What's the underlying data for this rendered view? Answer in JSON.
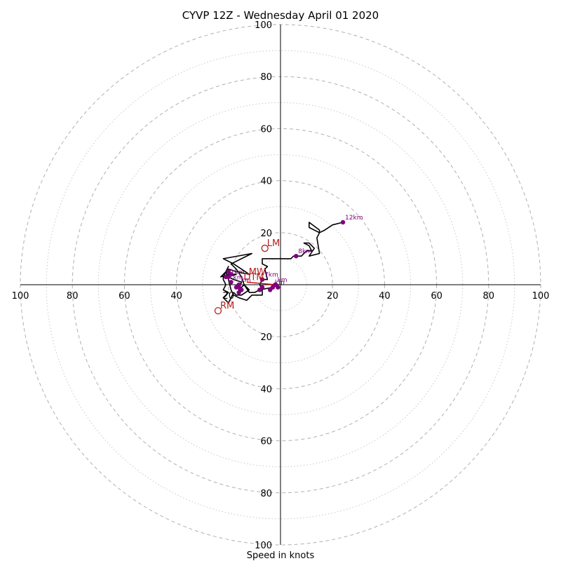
{
  "chart_data": {
    "type": "hodograph",
    "title": "CYVP 12Z - Wednesday April 01 2020",
    "xlabel": "Speed in knots",
    "xlim": [
      -100,
      100
    ],
    "ylim": [
      -100,
      100
    ],
    "rings": {
      "major": [
        20,
        40,
        60,
        80,
        100
      ],
      "minor": [
        10,
        30,
        50,
        70,
        90
      ]
    },
    "x_tick_labels": [
      "100",
      "80",
      "60",
      "40",
      "20",
      "20",
      "40",
      "60",
      "80",
      "100"
    ],
    "y_tick_labels": [
      "100",
      "80",
      "60",
      "40",
      "20",
      "20",
      "40",
      "60",
      "80",
      "100"
    ],
    "hodograph_trace": [
      [
        -3,
        -1
      ],
      [
        -8,
        -2
      ],
      [
        -10,
        -3
      ],
      [
        -12,
        -3
      ],
      [
        -14,
        0
      ],
      [
        -16,
        -2
      ],
      [
        -15,
        1
      ],
      [
        -18,
        2
      ],
      [
        -20,
        3
      ],
      [
        -17,
        4
      ],
      [
        -20,
        4
      ],
      [
        -23,
        3
      ],
      [
        -20,
        6
      ],
      [
        -17,
        5
      ],
      [
        -12,
        4
      ],
      [
        -18,
        8
      ],
      [
        -22,
        10
      ],
      [
        -11,
        12
      ],
      [
        -19,
        8
      ],
      [
        -17,
        6
      ],
      [
        -15,
        3
      ],
      [
        -14,
        0
      ],
      [
        -12,
        -2
      ],
      [
        -15,
        -4
      ],
      [
        -17,
        -4
      ],
      [
        -18,
        -3
      ],
      [
        -19,
        -5
      ],
      [
        -20,
        -7
      ],
      [
        -22,
        -5
      ],
      [
        -20,
        -3
      ],
      [
        -22,
        -2
      ],
      [
        -21,
        0
      ],
      [
        -22,
        2
      ],
      [
        -22,
        3
      ],
      [
        -20,
        7
      ],
      [
        -21,
        5
      ],
      [
        -20,
        2
      ],
      [
        -19,
        -2
      ],
      [
        -18,
        -4
      ],
      [
        -16,
        -5
      ],
      [
        -13,
        -6
      ],
      [
        -11,
        -4
      ],
      [
        -7,
        -4
      ],
      [
        -7,
        -2
      ],
      [
        -8,
        0
      ],
      [
        -7,
        2
      ],
      [
        -5,
        2
      ],
      [
        -6,
        6
      ],
      [
        -5,
        7
      ],
      [
        -7,
        8
      ],
      [
        -7,
        10
      ],
      [
        -2,
        10
      ],
      [
        4,
        10
      ],
      [
        5,
        11
      ],
      [
        8,
        11
      ],
      [
        10,
        13
      ],
      [
        12,
        13
      ],
      [
        11,
        15
      ],
      [
        9,
        16
      ],
      [
        11,
        16
      ],
      [
        13,
        14
      ],
      [
        11,
        11
      ],
      [
        15,
        12
      ],
      [
        14,
        18
      ],
      [
        15,
        20
      ],
      [
        11,
        22
      ],
      [
        11,
        24
      ],
      [
        15,
        21
      ],
      [
        15,
        20
      ],
      [
        17,
        21
      ],
      [
        20,
        23
      ],
      [
        24,
        24
      ]
    ],
    "height_points": [
      {
        "label": "",
        "u": -3,
        "v": -1
      },
      {
        "label": "",
        "u": -1,
        "v": -1
      },
      {
        "label": "",
        "u": -2,
        "v": 0
      },
      {
        "label": "",
        "u": -4,
        "v": -2
      },
      {
        "label": "",
        "u": -7,
        "v": -1
      },
      {
        "label": "",
        "u": -8,
        "v": -2
      },
      {
        "label": "",
        "u": -16,
        "v": -1
      },
      {
        "label": "",
        "u": -17,
        "v": -1
      },
      {
        "label": "",
        "u": -15,
        "v": -2
      },
      {
        "label": "1km",
        "u": -20,
        "v": 3
      },
      {
        "label": "",
        "u": -16,
        "v": -3
      },
      {
        "label": "",
        "u": -19,
        "v": 4
      },
      {
        "label": "",
        "u": -21,
        "v": 3
      },
      {
        "label": "",
        "u": -20,
        "v": 5
      },
      {
        "label": "7km",
        "u": -7,
        "v": 2
      },
      {
        "label": "8km",
        "u": 6,
        "v": 11
      },
      {
        "label": "12km",
        "u": 24,
        "v": 24
      },
      {
        "label": "km",
        "u": -19,
        "v": 1
      },
      {
        "label": "km",
        "u": -16,
        "v": 0
      },
      {
        "label": "km",
        "u": -2,
        "v": 0
      },
      {
        "label": "km",
        "u": -3,
        "v": -1
      }
    ],
    "bunkers_line": [
      [
        -13,
        1
      ],
      [
        -2,
        0
      ]
    ],
    "markers": [
      {
        "label": "LM",
        "u": -6,
        "v": 14
      },
      {
        "label": "RM",
        "u": -24,
        "v": -10
      },
      {
        "label": "MW",
        "u": -13,
        "v": 3
      },
      {
        "label": "DTM",
        "u": -15,
        "v": 1
      }
    ]
  }
}
